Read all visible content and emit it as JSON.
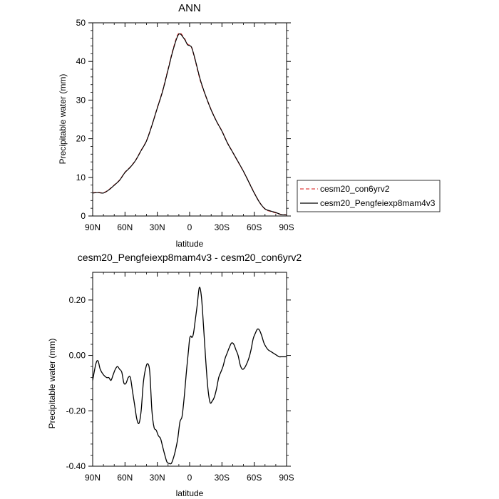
{
  "chart_data": [
    {
      "type": "line",
      "title": "ANN",
      "xlabel": "latitude",
      "ylabel": "Precipitable water (mm)",
      "xlim": [
        90,
        -90
      ],
      "ylim": [
        0,
        50
      ],
      "x_ticks": [
        90,
        60,
        30,
        0,
        -30,
        -60,
        -90
      ],
      "x_tick_labels": [
        "90N",
        "60N",
        "30N",
        "0",
        "30S",
        "60S",
        "90S"
      ],
      "y_ticks": [
        0,
        10,
        20,
        30,
        40,
        50
      ],
      "y_tick_labels": [
        "0",
        "10",
        "20",
        "30",
        "40",
        "50"
      ],
      "legend_position": "right",
      "grid": false,
      "series": [
        {
          "name": "cesm20_con6yrv2",
          "color": "#e04040",
          "dash": "dashed",
          "x": [
            90,
            85,
            80,
            75,
            70,
            65,
            60,
            55,
            50,
            45,
            40,
            35,
            30,
            25,
            20,
            15,
            10,
            5,
            2,
            0,
            -2,
            -5,
            -10,
            -15,
            -20,
            -25,
            -30,
            -35,
            -40,
            -45,
            -50,
            -55,
            -60,
            -65,
            -70,
            -75,
            -80,
            -85,
            -90
          ],
          "values": [
            6.0,
            6.1,
            6.0,
            6.8,
            8.0,
            9.3,
            11.3,
            12.7,
            14.5,
            17.0,
            19.5,
            23.5,
            28.0,
            32.5,
            38.0,
            43.5,
            47.3,
            46.0,
            44.5,
            44.2,
            43.5,
            40.5,
            35.0,
            31.0,
            27.5,
            24.5,
            22.0,
            19.0,
            16.5,
            14.0,
            11.5,
            8.8,
            6.0,
            3.5,
            1.8,
            1.2,
            0.8,
            0.4,
            0.3
          ]
        },
        {
          "name": "cesm20_Pengfeiexp8mam4v3",
          "color": "#000000",
          "dash": "solid",
          "x": [
            90,
            85,
            80,
            75,
            70,
            65,
            60,
            55,
            50,
            45,
            40,
            35,
            30,
            25,
            20,
            15,
            10,
            5,
            2,
            0,
            -2,
            -5,
            -10,
            -15,
            -20,
            -25,
            -30,
            -35,
            -40,
            -45,
            -50,
            -55,
            -60,
            -65,
            -70,
            -75,
            -80,
            -85,
            -90
          ],
          "values": [
            5.95,
            6.05,
            5.95,
            6.75,
            7.95,
            9.25,
            11.25,
            12.65,
            14.45,
            16.95,
            19.45,
            23.45,
            27.95,
            32.35,
            37.85,
            43.3,
            47.05,
            45.85,
            44.35,
            44.1,
            43.55,
            40.65,
            35.2,
            31.05,
            27.45,
            24.5,
            21.95,
            18.95,
            16.5,
            14.05,
            11.55,
            8.75,
            5.95,
            3.5,
            1.85,
            1.3,
            0.9,
            0.4,
            0.3
          ]
        }
      ]
    },
    {
      "type": "line",
      "title": "cesm20_Pengfeiexp8mam4v3 - cesm20_con6yrv2",
      "xlabel": "latitude",
      "ylabel": "Precipitable water (mm)",
      "xlim": [
        90,
        -90
      ],
      "ylim": [
        -0.4,
        0.3
      ],
      "x_ticks": [
        90,
        60,
        30,
        0,
        -30,
        -60,
        -90
      ],
      "x_tick_labels": [
        "90N",
        "60N",
        "30N",
        "0",
        "30S",
        "60S",
        "90S"
      ],
      "y_ticks": [
        0.2,
        0.0,
        -0.2,
        -0.4
      ],
      "y_tick_labels": [
        "0.20",
        "0.00",
        "-0.20",
        "-0.40"
      ],
      "grid": false,
      "series": [
        {
          "color": "#000000",
          "x": [
            90,
            87,
            85,
            83,
            80,
            77,
            75,
            73,
            71,
            69,
            67,
            65,
            63,
            61,
            59,
            57,
            55,
            53,
            51,
            49,
            47,
            45,
            43,
            41,
            39,
            37,
            35,
            33,
            31,
            29,
            27,
            25,
            23,
            21,
            19,
            17,
            15,
            13,
            11,
            9,
            7,
            5,
            3,
            1,
            0,
            -1,
            -2,
            -3,
            -4,
            -5,
            -7,
            -9,
            -11,
            -13,
            -15,
            -17,
            -19,
            -21,
            -23,
            -25,
            -27,
            -29,
            -31,
            -33,
            -35,
            -37,
            -39,
            -41,
            -43,
            -45,
            -47,
            -49,
            -51,
            -53,
            -55,
            -57,
            -59,
            -61,
            -63,
            -65,
            -67,
            -69,
            -71,
            -73,
            -75,
            -77,
            -79,
            -81,
            -83,
            -85,
            -87,
            -89,
            -90
          ],
          "values": [
            -0.09,
            -0.03,
            -0.02,
            -0.05,
            -0.07,
            -0.08,
            -0.08,
            -0.09,
            -0.07,
            -0.05,
            -0.04,
            -0.05,
            -0.06,
            -0.1,
            -0.1,
            -0.08,
            -0.08,
            -0.13,
            -0.18,
            -0.23,
            -0.245,
            -0.2,
            -0.1,
            -0.05,
            -0.03,
            -0.06,
            -0.2,
            -0.26,
            -0.27,
            -0.29,
            -0.3,
            -0.33,
            -0.36,
            -0.385,
            -0.39,
            -0.39,
            -0.37,
            -0.34,
            -0.3,
            -0.24,
            -0.22,
            -0.15,
            -0.06,
            0.02,
            0.06,
            0.07,
            0.065,
            0.07,
            0.09,
            0.12,
            0.18,
            0.245,
            0.21,
            0.1,
            -0.02,
            -0.12,
            -0.17,
            -0.165,
            -0.15,
            -0.12,
            -0.08,
            -0.06,
            -0.04,
            -0.01,
            0.01,
            0.03,
            0.045,
            0.04,
            0.02,
            0.0,
            -0.035,
            -0.05,
            -0.045,
            -0.03,
            -0.01,
            0.02,
            0.06,
            0.08,
            0.095,
            0.09,
            0.07,
            0.045,
            0.03,
            0.02,
            0.015,
            0.01,
            0.005,
            0.0,
            -0.005,
            -0.005,
            -0.005,
            -0.005,
            -0.005
          ]
        }
      ]
    }
  ]
}
